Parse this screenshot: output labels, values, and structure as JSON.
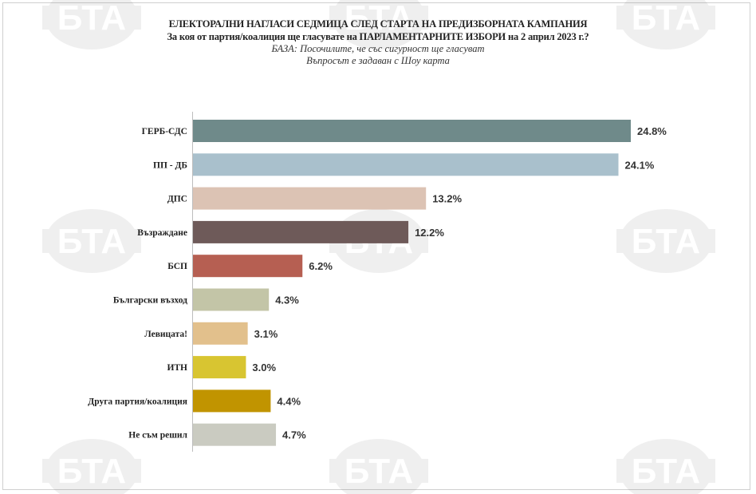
{
  "header": {
    "title": "ЕЛЕКТОРАЛНИ НАГЛАСИ СЕДМИЦА СЛЕД СТАРТА НА ПРЕДИЗБОРНАТА КАМПАНИЯ",
    "subtitle": "За коя от партия/коалиция ще гласувате на ПАРЛАМЕНТАРНИТЕ ИЗБОРИ на 2 април 2023 г.?",
    "base_note": "БАЗА: Посочилите, че със сигурност ще гласуват",
    "question_note": "Въпросът е задаван с Шоу карта"
  },
  "watermark": {
    "text": "БТА"
  },
  "chart_data": {
    "type": "bar",
    "orientation": "horizontal",
    "categories": [
      "ГЕРБ-СДС",
      "ПП - ДБ",
      "ДПС",
      "Възраждане",
      "БСП",
      "Български възход",
      "Левицата!",
      "ИТН",
      "Друга партия/коалиция",
      "Не съм решил"
    ],
    "values": [
      24.8,
      24.1,
      13.2,
      12.2,
      6.2,
      4.3,
      3.1,
      3.0,
      4.4,
      4.7
    ],
    "value_labels": [
      "24.8%",
      "24.1%",
      "13.2%",
      "12.2%",
      "6.2%",
      "4.3%",
      "3.1%",
      "3.0%",
      "4.4%",
      "4.7%"
    ],
    "colors": [
      "#6f8a8a",
      "#a9c0cc",
      "#dcc3b4",
      "#6e5a59",
      "#b65f52",
      "#c3c5a7",
      "#e2c08c",
      "#d8c531",
      "#c19400",
      "#cacbc1"
    ],
    "xlim": [
      0,
      26
    ],
    "grid": false,
    "legend": "none"
  }
}
